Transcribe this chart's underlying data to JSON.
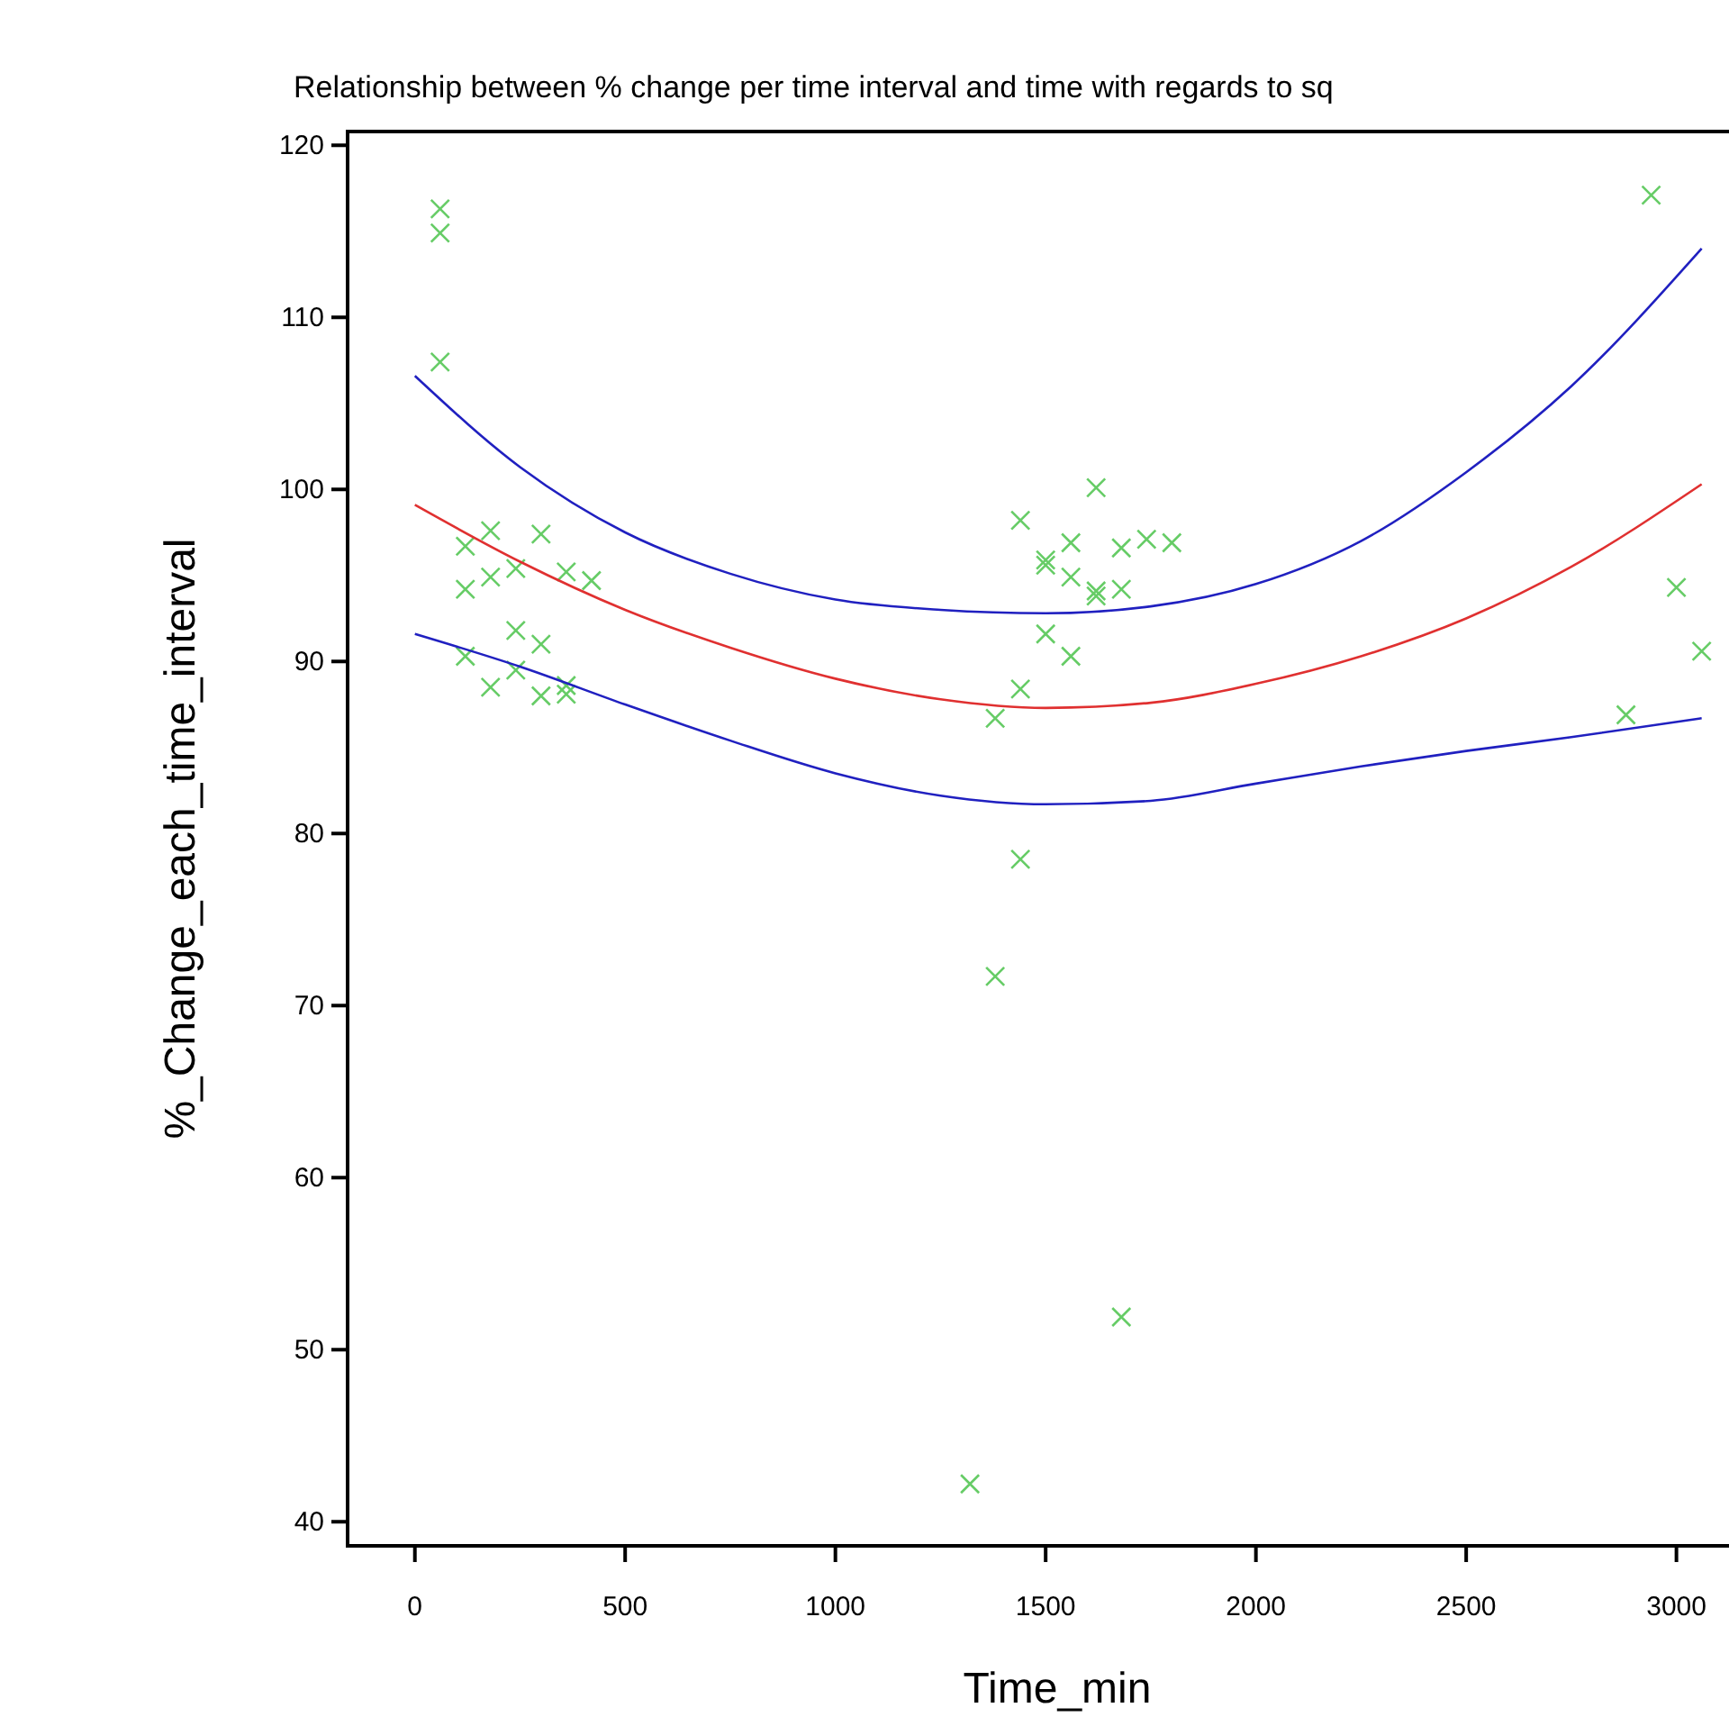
{
  "chart_data": {
    "type": "scatter",
    "title": "Relationship between % change per time interval and time with regards to sq",
    "xlabel": "Time_min",
    "ylabel": "%_Change_each_time_interval",
    "xlim": [
      -160,
      3125
    ],
    "ylim": [
      38.6,
      120.8
    ],
    "xticks": [
      0,
      500,
      1000,
      1500,
      2000,
      2500,
      3000
    ],
    "yticks": [
      40,
      50,
      60,
      70,
      80,
      90,
      100,
      110,
      120
    ],
    "grid": false,
    "series": [
      {
        "marker": "cross",
        "color": "#66cc66",
        "x": [
          60,
          60,
          60,
          120,
          180,
          300,
          120,
          180,
          240,
          360,
          420,
          240,
          300,
          120,
          180,
          240,
          300,
          360,
          360,
          1320,
          1380,
          1380,
          1440,
          1440,
          1440,
          1500,
          1500,
          1500,
          1560,
          1560,
          1560,
          1620,
          1620,
          1620,
          1680,
          1680,
          1680,
          1740,
          1800,
          2940,
          2880,
          3000,
          3060
        ],
        "values": [
          116.3,
          114.9,
          107.4,
          96.7,
          97.6,
          97.4,
          94.2,
          94.9,
          95.4,
          95.2,
          94.7,
          91.8,
          91.0,
          90.3,
          88.5,
          89.5,
          88.0,
          88.1,
          88.6,
          42.2,
          71.7,
          86.7,
          78.5,
          88.4,
          98.2,
          91.6,
          95.9,
          95.6,
          96.9,
          94.9,
          90.3,
          100.1,
          94.1,
          93.8,
          96.6,
          94.2,
          51.9,
          97.1,
          96.9,
          117.1,
          86.9,
          94.3,
          90.6
        ]
      },
      {
        "type": "line",
        "color": "#e03030",
        "x": [
          0,
          250,
          500,
          750,
          1000,
          1250,
          1500,
          1750,
          2000,
          2250,
          2500,
          2750,
          3060
        ],
        "values": [
          99.1,
          95.8,
          93.0,
          90.8,
          89.0,
          87.8,
          87.3,
          87.6,
          88.7,
          90.3,
          92.5,
          95.5,
          100.3
        ]
      },
      {
        "type": "line",
        "color": "#2020c0",
        "x": [
          0,
          250,
          500,
          750,
          1000,
          1250,
          1500,
          1750,
          2000,
          2250,
          2500,
          2750,
          3060
        ],
        "values": [
          106.6,
          101.3,
          97.5,
          95.1,
          93.6,
          93.0,
          92.8,
          93.2,
          94.5,
          97.0,
          101.0,
          106.0,
          114.0
        ]
      },
      {
        "type": "line",
        "color": "#2020c0",
        "x": [
          0,
          250,
          500,
          750,
          1000,
          1250,
          1500,
          1750,
          2000,
          2250,
          2500,
          2750,
          3060
        ],
        "values": [
          91.6,
          89.7,
          87.5,
          85.4,
          83.5,
          82.2,
          81.7,
          81.9,
          82.9,
          83.9,
          84.8,
          85.6,
          86.7
        ]
      }
    ]
  }
}
